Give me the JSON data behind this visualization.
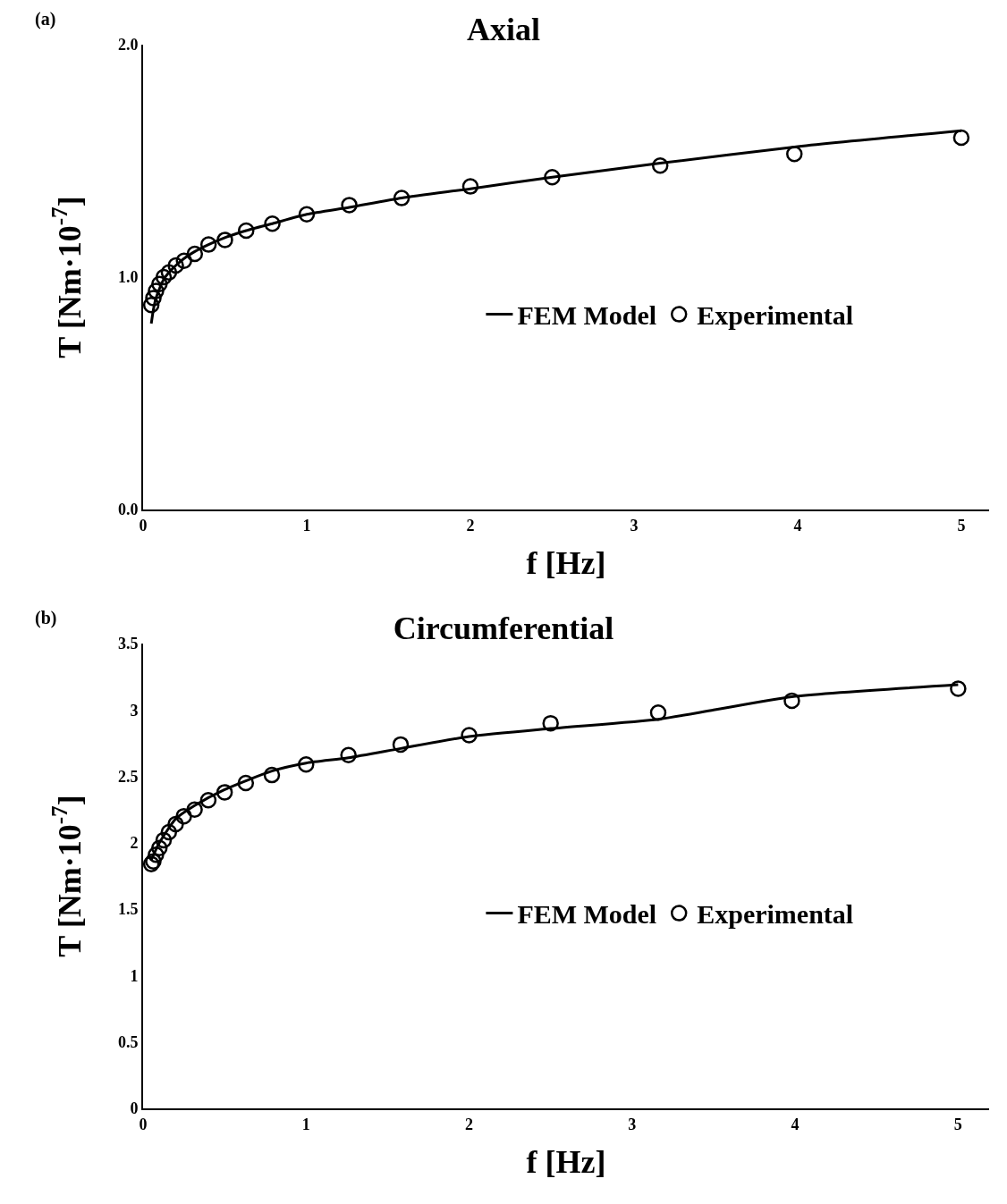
{
  "chart_data": [
    {
      "type": "scatter",
      "title": "Axial",
      "xlabel": "f [Hz]",
      "ylabel": "T [Nm·10$^{-7}$]",
      "annotations": [
        "(a)"
      ],
      "xlim": [
        0,
        5.17
      ],
      "xticks": [
        0,
        1,
        2,
        3,
        4,
        5
      ],
      "ylim": [
        0,
        2
      ],
      "yticks": [
        {
          "value": 0,
          "label": "0.0"
        },
        {
          "value": 1,
          "label": "1.0"
        },
        {
          "value": 2,
          "label": "2.0"
        }
      ],
      "grid": false,
      "legend": "right",
      "series": [
        {
          "name": "FEM Model",
          "type": "line",
          "marker": "none",
          "line_style": "solid",
          "color": "#000000",
          "x": [
            0.05,
            0.063,
            0.079,
            0.1,
            0.126,
            0.158,
            0.2,
            0.25,
            0.316,
            0.4,
            0.5,
            0.63,
            0.79,
            1,
            1.26,
            1.58,
            2,
            2.5,
            3.16,
            3.98,
            5
          ],
          "values": [
            0.8,
            0.86,
            0.91,
            0.95,
            0.99,
            1.02,
            1.05,
            1.08,
            1.11,
            1.14,
            1.17,
            1.2,
            1.23,
            1.27,
            1.3,
            1.34,
            1.38,
            1.43,
            1.49,
            1.56,
            1.63
          ]
        },
        {
          "name": "Experimental",
          "type": "scatter",
          "marker": "circle",
          "color": "#000000",
          "x": [
            0.05,
            0.063,
            0.079,
            0.1,
            0.126,
            0.158,
            0.2,
            0.25,
            0.316,
            0.4,
            0.5,
            0.63,
            0.79,
            1,
            1.26,
            1.58,
            2,
            2.5,
            3.16,
            3.98,
            5
          ],
          "values": [
            0.88,
            0.91,
            0.94,
            0.97,
            1.0,
            1.02,
            1.05,
            1.07,
            1.1,
            1.14,
            1.16,
            1.2,
            1.23,
            1.27,
            1.31,
            1.34,
            1.39,
            1.43,
            1.48,
            1.53,
            1.6
          ]
        }
      ]
    },
    {
      "type": "scatter",
      "title": "Circumferential",
      "xlabel": "f [Hz]",
      "ylabel": "T [Nm·10$^{-7}$]",
      "annotations": [
        "(b)"
      ],
      "xlim": [
        0,
        5.19
      ],
      "xticks": [
        0,
        1,
        2,
        3,
        4,
        5
      ],
      "ylim": [
        0,
        3.5
      ],
      "yticks": [
        0,
        0.5,
        1,
        1.5,
        2,
        2.5,
        3,
        3.5
      ],
      "grid": false,
      "legend": "right",
      "series": [
        {
          "name": "FEM Model",
          "type": "line",
          "marker": "none",
          "line_style": "solid",
          "color": "#000000",
          "x": [
            0.05,
            0.1,
            0.2,
            0.316,
            0.5,
            0.79,
            1,
            1.26,
            1.58,
            2,
            2.5,
            3.16,
            3.5,
            3.98,
            5
          ],
          "values": [
            1.87,
            2.0,
            2.18,
            2.28,
            2.4,
            2.54,
            2.6,
            2.64,
            2.71,
            2.8,
            2.86,
            2.93,
            3.0,
            3.1,
            3.19
          ]
        },
        {
          "name": "Experimental",
          "type": "scatter",
          "marker": "circle",
          "color": "#000000",
          "x": [
            0.05,
            0.063,
            0.079,
            0.1,
            0.126,
            0.158,
            0.2,
            0.25,
            0.316,
            0.4,
            0.5,
            0.63,
            0.79,
            1,
            1.26,
            1.58,
            2,
            2.5,
            3.16,
            3.98,
            5
          ],
          "values": [
            1.84,
            1.86,
            1.91,
            1.96,
            2.02,
            2.08,
            2.14,
            2.2,
            2.25,
            2.32,
            2.38,
            2.45,
            2.51,
            2.59,
            2.66,
            2.74,
            2.81,
            2.9,
            2.98,
            3.07,
            3.16
          ]
        }
      ]
    }
  ]
}
